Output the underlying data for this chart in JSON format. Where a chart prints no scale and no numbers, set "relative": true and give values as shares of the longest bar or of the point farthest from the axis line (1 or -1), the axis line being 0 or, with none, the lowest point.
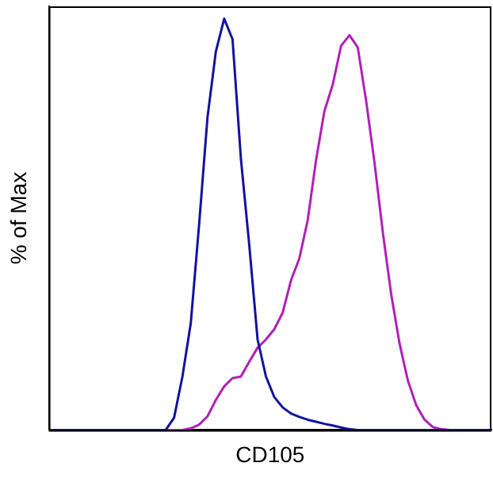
{
  "chart_data": {
    "type": "line",
    "relative": true,
    "xlabel": "CD105",
    "ylabel": "% of Max",
    "grid": false,
    "legend": false,
    "marker": "none",
    "line_style": "solid",
    "categories": [
      null,
      null,
      null,
      null,
      null,
      null,
      null,
      null,
      null,
      null,
      null,
      null,
      null,
      null,
      null,
      null,
      null,
      null,
      null,
      null,
      null,
      null,
      null,
      null,
      null,
      null,
      null,
      null,
      null,
      null,
      null,
      null,
      null,
      null,
      null,
      null,
      null,
      null,
      null,
      null,
      null,
      null,
      null,
      null,
      null,
      null,
      null,
      null,
      null,
      null,
      null,
      null,
      null,
      null
    ],
    "series": [
      {
        "color": "#12129e",
        "values": [
          0,
          0,
          0,
          0,
          0,
          0,
          0,
          0,
          0,
          0,
          0,
          0,
          0,
          0,
          0,
          0.03,
          0.13,
          0.26,
          0.5,
          0.76,
          0.92,
          1,
          0.95,
          0.66,
          0.45,
          0.22,
          0.13,
          0.08,
          0.055,
          0.04,
          0.032,
          0.025,
          0.02,
          0.015,
          0.011,
          0.006,
          0.002,
          0,
          0,
          0,
          0,
          0,
          0,
          0,
          0,
          0,
          0,
          0,
          0,
          0,
          0,
          0,
          0,
          0
        ]
      },
      {
        "color": "#b020b8",
        "values": [
          null,
          null,
          null,
          null,
          null,
          null,
          null,
          null,
          null,
          null,
          null,
          null,
          null,
          0,
          0,
          0,
          0,
          0.004,
          0.013,
          0.033,
          0.073,
          0.106,
          0.126,
          0.13,
          0.166,
          0.2,
          0.22,
          0.245,
          0.285,
          0.364,
          0.417,
          0.51,
          0.656,
          0.775,
          0.84,
          0.934,
          0.96,
          0.93,
          0.8,
          0.65,
          0.48,
          0.33,
          0.21,
          0.12,
          0.06,
          0.025,
          0.007,
          0.002,
          0,
          0,
          null,
          null,
          null,
          null
        ]
      }
    ]
  }
}
